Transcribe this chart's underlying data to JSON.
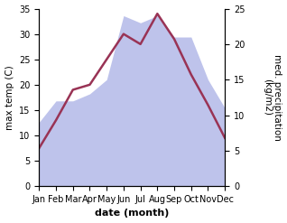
{
  "months": [
    1,
    2,
    3,
    4,
    5,
    6,
    7,
    8,
    9,
    10,
    11,
    12
  ],
  "month_labels": [
    "Jan",
    "Feb",
    "Mar",
    "Apr",
    "May",
    "Jun",
    "Jul",
    "Aug",
    "Sep",
    "Oct",
    "Nov",
    "Dec"
  ],
  "temperature": [
    7.5,
    13.0,
    19.0,
    20.0,
    25.0,
    30.0,
    28.0,
    34.0,
    29.0,
    22.0,
    16.0,
    9.5
  ],
  "precipitation": [
    9.0,
    12.0,
    12.0,
    13.0,
    15.0,
    24.0,
    23.0,
    24.0,
    21.0,
    21.0,
    15.0,
    11.0
  ],
  "temp_color": "#993355",
  "precip_color": "#b3b9e8",
  "background_color": "#ffffff",
  "xlabel": "date (month)",
  "ylabel_left": "max temp (C)",
  "ylabel_right": "med. precipitation\n(kg/m2)",
  "ylim_left": [
    0,
    35
  ],
  "ylim_right": [
    0,
    25
  ],
  "yticks_left": [
    0,
    5,
    10,
    15,
    20,
    25,
    30,
    35
  ],
  "yticks_right": [
    0,
    5,
    10,
    15,
    20,
    25
  ],
  "temp_linewidth": 1.8,
  "xlabel_fontsize": 8,
  "ylabel_fontsize": 7.5,
  "tick_fontsize": 7
}
